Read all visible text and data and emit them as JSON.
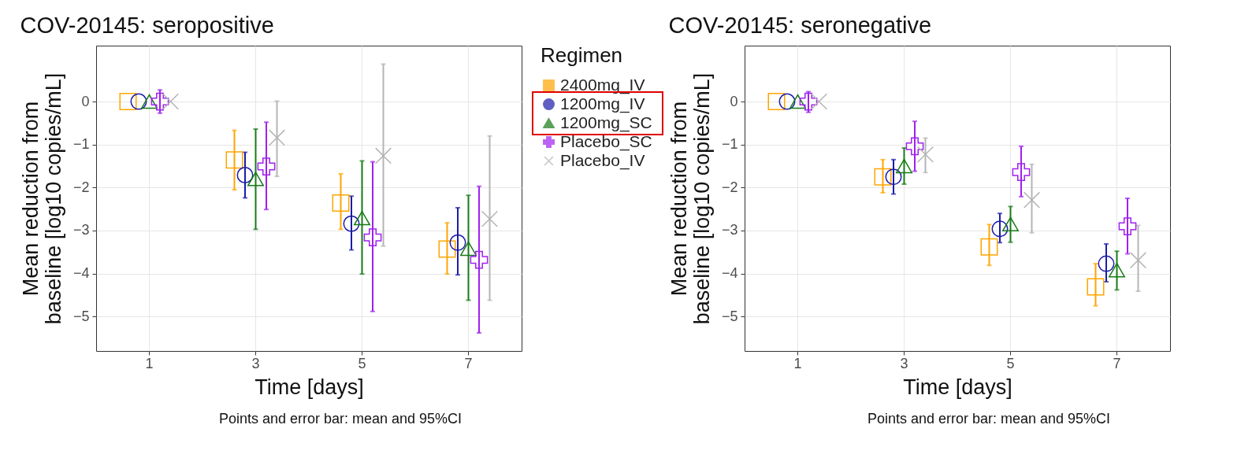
{
  "chart_data": [
    {
      "type": "scatter",
      "title": "COV-20145: seropositive",
      "xlabel": "Time [days]",
      "ylabel": "Mean reduction from\nbaseline [log10 copies/mL]",
      "legend_title": "Regimen",
      "legend": "right",
      "grid": true,
      "categories": [
        "1",
        "3",
        "5",
        "7"
      ],
      "ylim": [
        -5.8,
        1.3
      ],
      "yticks": [
        -5,
        -4,
        -3,
        -2,
        -1,
        0
      ],
      "annotations": [
        "Points and error bar: mean and 95%CI"
      ],
      "series": [
        {
          "name": "2400mg_IV",
          "color": "#ffa500",
          "marker": "square",
          "values": [
            0,
            -1.36,
            -2.36,
            -3.43
          ],
          "errors": [
            null,
            [
              -2.05,
              -0.67
            ],
            [
              -2.97,
              -1.68
            ],
            [
              -4.01,
              -2.82
            ]
          ]
        },
        {
          "name": "1200mg_IV",
          "color": "#1c1ca8",
          "marker": "circle",
          "values": [
            0,
            -1.71,
            -2.84,
            -3.28
          ],
          "errors": [
            null,
            [
              -2.24,
              -1.18
            ],
            [
              -3.45,
              -2.2
            ],
            [
              -4.03,
              -2.47
            ]
          ]
        },
        {
          "name": "1200mg_SC",
          "color": "#167a16",
          "marker": "triangle",
          "values": [
            0,
            -1.8,
            -2.71,
            -3.42
          ],
          "errors": [
            null,
            [
              -2.97,
              -0.64
            ],
            [
              -4.01,
              -1.38
            ],
            [
              -4.62,
              -2.18
            ]
          ]
        },
        {
          "name": "Placebo_SC",
          "color": "#a020f0",
          "marker": "cross",
          "values": [
            0,
            -1.51,
            -3.16,
            -3.68
          ],
          "errors": [
            [
              -0.27,
              0.27
            ],
            [
              -2.51,
              -0.48
            ],
            [
              -4.88,
              -1.4
            ],
            [
              -5.38,
              -1.97
            ]
          ]
        },
        {
          "name": "Placebo_IV",
          "color": "#b4b4b4",
          "marker": "x",
          "values": [
            0,
            -0.84,
            -1.26,
            -2.73
          ],
          "errors": [
            null,
            [
              -1.74,
              0.01
            ],
            [
              -3.36,
              0.87
            ],
            [
              -4.62,
              -0.8
            ]
          ]
        }
      ]
    },
    {
      "type": "scatter",
      "title": "COV-20145: seronegative",
      "xlabel": "Time [days]",
      "ylabel": "Mean reduction from\nbaseline [log10 copies/mL]",
      "grid": true,
      "categories": [
        "1",
        "3",
        "5",
        "7"
      ],
      "ylim": [
        -5.8,
        1.3
      ],
      "yticks": [
        -5,
        -4,
        -3,
        -2,
        -1,
        0
      ],
      "annotations": [
        "Points and error bar: mean and 95%CI"
      ],
      "series": [
        {
          "color": "#ffa500",
          "marker": "square",
          "values": [
            0,
            -1.75,
            -3.38,
            -4.31
          ],
          "errors": [
            null,
            [
              -2.12,
              -1.35
            ],
            [
              -3.81,
              -2.86
            ],
            [
              -4.75,
              -3.77
            ]
          ]
        },
        {
          "color": "#1c1ca8",
          "marker": "circle",
          "values": [
            0,
            -1.75,
            -2.96,
            -3.77
          ],
          "errors": [
            null,
            [
              -2.15,
              -1.35
            ],
            [
              -3.28,
              -2.6
            ],
            [
              -4.19,
              -3.31
            ]
          ]
        },
        {
          "color": "#167a16",
          "marker": "triangle",
          "values": [
            0,
            -1.5,
            -2.85,
            -3.92
          ],
          "errors": [
            null,
            [
              -1.92,
              -1.08
            ],
            [
              -3.27,
              -2.44
            ],
            [
              -4.38,
              -3.48
            ]
          ]
        },
        {
          "color": "#a020f0",
          "marker": "cross",
          "values": [
            0,
            -1.04,
            -1.64,
            -2.9
          ],
          "errors": [
            [
              -0.25,
              0.23
            ],
            [
              -1.62,
              -0.46
            ],
            [
              -2.21,
              -1.04
            ],
            [
              -3.54,
              -2.25
            ]
          ]
        },
        {
          "color": "#b4b4b4",
          "marker": "x",
          "values": [
            0,
            -1.23,
            -2.29,
            -3.69
          ],
          "errors": [
            null,
            [
              -1.65,
              -0.85
            ],
            [
              -3.05,
              -1.46
            ],
            [
              -4.41,
              -2.88
            ]
          ]
        }
      ]
    }
  ]
}
